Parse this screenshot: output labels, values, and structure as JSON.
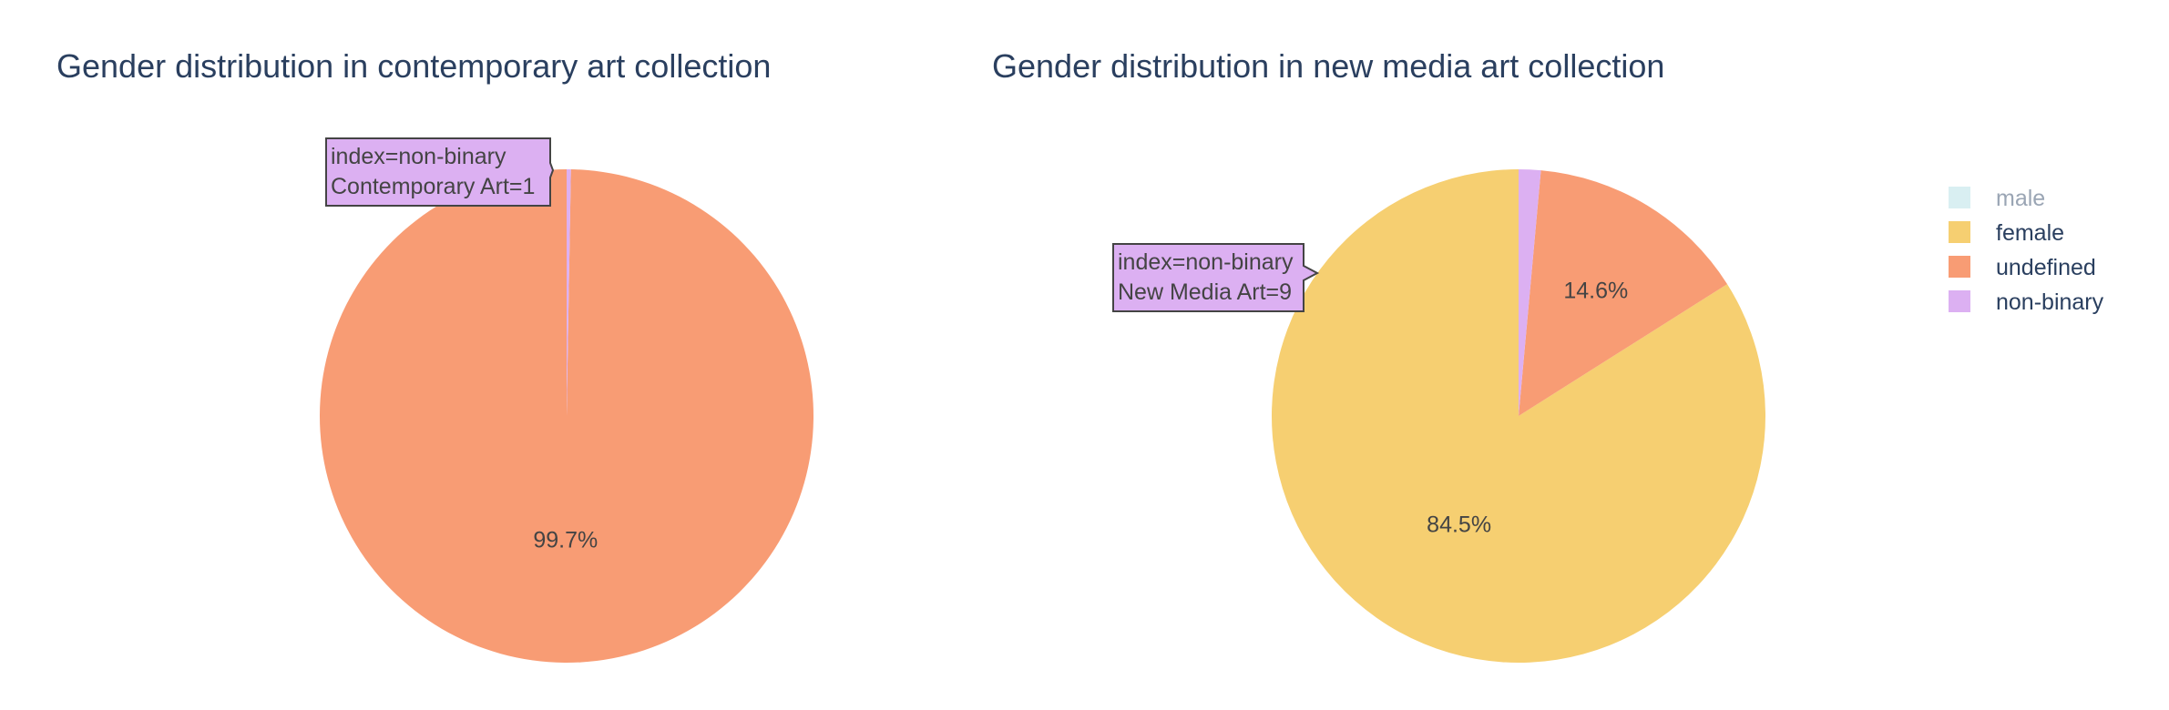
{
  "chart_data": [
    {
      "type": "pie",
      "title": "Gender distribution in contemporary art collection",
      "categories": [
        "male",
        "female",
        "undefined",
        "non-binary"
      ],
      "values": [
        0,
        0,
        359,
        1
      ],
      "slice_labels": {
        "undefined": "99.7%"
      },
      "hover": {
        "category": "non-binary",
        "lines": [
          "index=non-binary",
          "Contemporary Art=1"
        ]
      }
    },
    {
      "type": "pie",
      "title": "Gender distribution in new media art collection",
      "categories": [
        "male",
        "female",
        "undefined",
        "non-binary"
      ],
      "values": [
        0,
        524,
        91,
        9
      ],
      "slice_labels": {
        "female": "84.5%",
        "undefined": "14.6%"
      },
      "hover": {
        "category": "non-binary",
        "lines": [
          "index=non-binary",
          "New Media Art=9"
        ]
      }
    }
  ],
  "legend": {
    "placement": "top-right",
    "items": [
      {
        "label": "male",
        "color": "#b4e0e6",
        "visible": false
      },
      {
        "label": "female",
        "color": "#f6cf71",
        "visible": true
      },
      {
        "label": "undefined",
        "color": "#f89c74",
        "visible": true
      },
      {
        "label": "non-binary",
        "color": "#dcb0f2",
        "visible": true
      }
    ]
  },
  "colors": {
    "male": "#b4e0e6",
    "female": "#f6cf71",
    "undefined": "#f89c74",
    "non-binary": "#dcb0f2",
    "title": "#2a3f5f",
    "label": "#444444",
    "hover_border": "#444444"
  }
}
